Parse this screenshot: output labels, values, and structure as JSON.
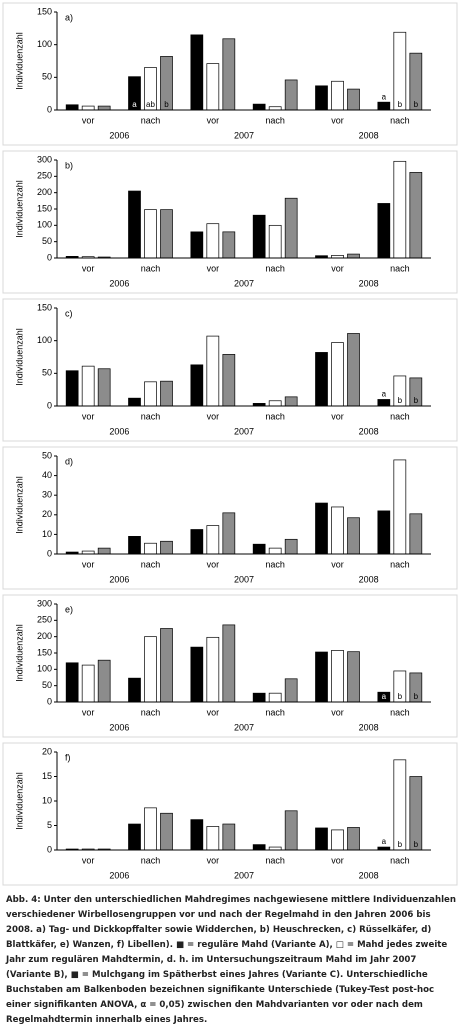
{
  "chart_data": [
    {
      "type": "bar",
      "panel_label": "a)",
      "ylabel": "Individuenzahl",
      "categories": [
        "vor",
        "nach",
        "vor",
        "nach",
        "vor",
        "nach"
      ],
      "years": [
        "2006",
        "2007",
        "2008"
      ],
      "series": [
        {
          "color": "#000000",
          "values": [
            8,
            51,
            115,
            9,
            37,
            12
          ]
        },
        {
          "color": "#ffffff",
          "values": [
            6,
            65,
            71,
            5,
            44,
            119
          ]
        },
        {
          "color": "#8c8c8c",
          "values": [
            6,
            82,
            109,
            46,
            32,
            87
          ]
        }
      ],
      "bar_letters": [
        null,
        [
          "a",
          "ab",
          "b"
        ],
        null,
        null,
        null,
        [
          "a",
          "b",
          "b"
        ]
      ],
      "ylim": [
        0,
        150
      ],
      "yticks": [
        0,
        50,
        100,
        150
      ]
    },
    {
      "type": "bar",
      "panel_label": "b)",
      "ylabel": "Individuenzahl",
      "categories": [
        "vor",
        "nach",
        "vor",
        "nach",
        "vor",
        "nach"
      ],
      "years": [
        "2006",
        "2007",
        "2008"
      ],
      "series": [
        {
          "color": "#000000",
          "values": [
            5,
            205,
            80,
            131,
            7,
            167
          ]
        },
        {
          "color": "#ffffff",
          "values": [
            4,
            148,
            105,
            100,
            8,
            296
          ]
        },
        {
          "color": "#8c8c8c",
          "values": [
            3,
            148,
            80,
            183,
            12,
            262
          ]
        }
      ],
      "bar_letters": [
        null,
        null,
        null,
        null,
        null,
        null
      ],
      "ylim": [
        0,
        300
      ],
      "yticks": [
        0,
        50,
        100,
        150,
        200,
        250,
        300
      ]
    },
    {
      "type": "bar",
      "panel_label": "c)",
      "ylabel": "Individuenzahl",
      "categories": [
        "vor",
        "nach",
        "vor",
        "nach",
        "vor",
        "nach"
      ],
      "years": [
        "2006",
        "2007",
        "2008"
      ],
      "series": [
        {
          "color": "#000000",
          "values": [
            54,
            12,
            63,
            4,
            82,
            10
          ]
        },
        {
          "color": "#ffffff",
          "values": [
            61,
            37,
            107,
            8,
            97,
            46
          ]
        },
        {
          "color": "#8c8c8c",
          "values": [
            57,
            38,
            79,
            14,
            111,
            43
          ]
        }
      ],
      "bar_letters": [
        null,
        null,
        null,
        null,
        null,
        [
          "a",
          "b",
          "b"
        ]
      ],
      "ylim": [
        0,
        150
      ],
      "yticks": [
        0,
        50,
        100,
        150
      ]
    },
    {
      "type": "bar",
      "panel_label": "d)",
      "ylabel": "Individuenzahl",
      "categories": [
        "vor",
        "nach",
        "vor",
        "nach",
        "vor",
        "nach"
      ],
      "years": [
        "2006",
        "2007",
        "2008"
      ],
      "series": [
        {
          "color": "#000000",
          "values": [
            1,
            9,
            12.5,
            5,
            26,
            22
          ]
        },
        {
          "color": "#ffffff",
          "values": [
            1.5,
            5.5,
            14.5,
            3,
            24,
            48
          ]
        },
        {
          "color": "#8c8c8c",
          "values": [
            3,
            6.5,
            21,
            7.5,
            18.5,
            20.5
          ]
        }
      ],
      "bar_letters": [
        null,
        null,
        null,
        null,
        null,
        null
      ],
      "ylim": [
        0,
        50
      ],
      "yticks": [
        0,
        10,
        20,
        30,
        40,
        50
      ]
    },
    {
      "type": "bar",
      "panel_label": "e)",
      "ylabel": "Individuenzahl",
      "categories": [
        "vor",
        "nach",
        "vor",
        "nach",
        "vor",
        "nach"
      ],
      "years": [
        "2006",
        "2007",
        "2008"
      ],
      "series": [
        {
          "color": "#000000",
          "values": [
            120,
            73,
            168,
            27,
            153,
            30
          ]
        },
        {
          "color": "#ffffff",
          "values": [
            113,
            200,
            198,
            27,
            158,
            95
          ]
        },
        {
          "color": "#8c8c8c",
          "values": [
            128,
            225,
            236,
            71,
            154,
            89
          ]
        }
      ],
      "bar_letters": [
        null,
        null,
        null,
        null,
        null,
        [
          "a",
          "b",
          "b"
        ]
      ],
      "ylim": [
        0,
        300
      ],
      "yticks": [
        0,
        50,
        100,
        150,
        200,
        250,
        300
      ]
    },
    {
      "type": "bar",
      "panel_label": "f)",
      "ylabel": "Individuenzahl",
      "categories": [
        "vor",
        "nach",
        "vor",
        "nach",
        "vor",
        "nach"
      ],
      "years": [
        "2006",
        "2007",
        "2008"
      ],
      "series": [
        {
          "color": "#000000",
          "values": [
            0.2,
            5.3,
            6.2,
            1.1,
            4.5,
            0.6
          ]
        },
        {
          "color": "#ffffff",
          "values": [
            0.2,
            8.6,
            4.8,
            0.6,
            4.1,
            18.4
          ]
        },
        {
          "color": "#8c8c8c",
          "values": [
            0.2,
            7.5,
            5.3,
            8,
            4.6,
            15
          ]
        }
      ],
      "bar_letters": [
        null,
        null,
        null,
        null,
        null,
        [
          "a",
          "b",
          "b"
        ]
      ],
      "ylim": [
        0,
        20
      ],
      "yticks": [
        0,
        5,
        10,
        15,
        20
      ]
    }
  ],
  "caption": "Abb. 4: Unter den unterschiedlichen Mahdregimes nachgewiesene mittlere Individuenzahlen verschiedener Wirbellosengruppen vor und nach der Regelmahd in den Jahren 2006 bis 2008. a) Tag- und Dickkopffalter sowie Widderchen, b) Heuschrecken, c) Rüsselkäfer, d) Blattkäfer, e) Wanzen, f) Libellen). ■ = reguläre Mahd (Variante A), □ = Mahd jedes zweite Jahr zum regulären Mahdtermin, d. h. im Untersuchungszeitraum Mahd im Jahr 2007 (Variante B), ■ = Mulchgang im Spätherbst eines Jahres (Variante C). Unterschiedliche Buchstaben am Balkenboden bezeichnen signifikante Unterschiede (Tukey-Test post-hoc einer signifikanten ANOVA, α = 0,05) zwischen den Mahdvarianten vor oder nach dem Regelmahdtermin innerhalb eines Jahres."
}
